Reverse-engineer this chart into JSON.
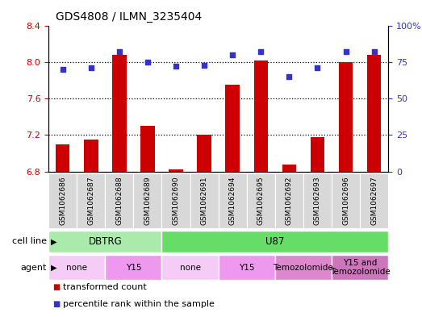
{
  "title": "GDS4808 / ILMN_3235404",
  "samples": [
    "GSM1062686",
    "GSM1062687",
    "GSM1062688",
    "GSM1062689",
    "GSM1062690",
    "GSM1062691",
    "GSM1062694",
    "GSM1062695",
    "GSM1062692",
    "GSM1062693",
    "GSM1062696",
    "GSM1062697"
  ],
  "transformed_counts": [
    7.1,
    7.15,
    8.08,
    7.3,
    6.82,
    7.2,
    7.75,
    8.02,
    6.88,
    7.18,
    8.0,
    8.08
  ],
  "percentile_ranks": [
    70,
    71,
    82,
    75,
    72,
    73,
    80,
    82,
    65,
    71,
    82,
    82
  ],
  "ylim_left": [
    6.8,
    8.4
  ],
  "ylim_right": [
    0,
    100
  ],
  "yticks_left": [
    6.8,
    7.2,
    7.6,
    8.0,
    8.4
  ],
  "yticks_right": [
    0,
    25,
    50,
    75,
    100
  ],
  "ytick_labels_right": [
    "0",
    "25",
    "50",
    "75",
    "100%"
  ],
  "bar_color": "#cc0000",
  "dot_color": "#3333cc",
  "bar_bottom": 6.8,
  "cell_line_groups": [
    {
      "label": "DBTRG",
      "start": 0,
      "end": 4,
      "color": "#aaeaaa"
    },
    {
      "label": "U87",
      "start": 4,
      "end": 12,
      "color": "#66dd66"
    }
  ],
  "agent_groups": [
    {
      "label": "none",
      "start": 0,
      "end": 2,
      "color": "#f5ccf5"
    },
    {
      "label": "Y15",
      "start": 2,
      "end": 4,
      "color": "#ee99ee"
    },
    {
      "label": "none",
      "start": 4,
      "end": 6,
      "color": "#f5ccf5"
    },
    {
      "label": "Y15",
      "start": 6,
      "end": 8,
      "color": "#ee99ee"
    },
    {
      "label": "Temozolomide",
      "start": 8,
      "end": 10,
      "color": "#dd88cc"
    },
    {
      "label": "Y15 and\nTemozolomide",
      "start": 10,
      "end": 12,
      "color": "#cc77bb"
    }
  ],
  "cell_line_row_label": "cell line",
  "agent_row_label": "agent",
  "legend_items": [
    {
      "label": "transformed count",
      "color": "#cc0000"
    },
    {
      "label": "percentile rank within the sample",
      "color": "#3333cc"
    }
  ],
  "sample_bg_color": "#d8d8d8",
  "sample_divider_color": "#ffffff"
}
